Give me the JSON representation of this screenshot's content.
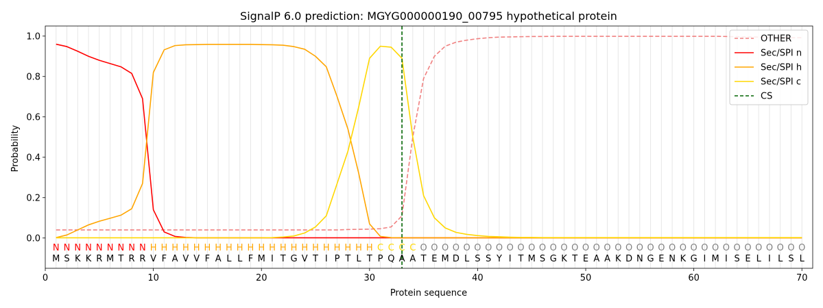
{
  "chart_data": {
    "type": "line",
    "title": "SignalP 6.0 prediction: MGYG000000190_00795 hypothetical protein",
    "xlabel": "Protein sequence",
    "ylabel": "Probability",
    "xlim": [
      0,
      71
    ],
    "ylim": [
      -0.15,
      1.05
    ],
    "xticks": [
      0,
      10,
      20,
      30,
      40,
      50,
      60,
      70
    ],
    "yticks": [
      0.0,
      0.2,
      0.4,
      0.6,
      0.8,
      1.0
    ],
    "xtick_labels": [
      "0",
      "10",
      "20",
      "30",
      "40",
      "50",
      "60",
      "70"
    ],
    "ytick_labels": [
      "0.0",
      "0.2",
      "0.4",
      "0.6",
      "0.8",
      "1.0"
    ],
    "legend_position": "top-right",
    "cleavage_site": {
      "name": "CS",
      "x": 33,
      "color": "#006400"
    },
    "sequence": "MSKKRMTRRVFAVVFALLFMITGVTIPTLTPQAATEMDLSSYITMSGKTEAAKDNGENKGIMISELILSL",
    "labels": "NNNNNNNNNHHHHHHHHHHHHHHHHHHHHHCCCCOOOOOOOOOOOOOOOOOOOOOOOOOOOOOOOOOOOO",
    "label_colors": {
      "N": "#ff0000",
      "H": "#ffa500",
      "C": "#ffd700",
      "O": "#808080"
    },
    "series": [
      {
        "name": "OTHER",
        "color": "#f08080",
        "dash": true,
        "values": [
          0.04,
          0.04,
          0.04,
          0.04,
          0.04,
          0.04,
          0.04,
          0.04,
          0.04,
          0.04,
          0.04,
          0.04,
          0.04,
          0.04,
          0.04,
          0.04,
          0.04,
          0.04,
          0.04,
          0.04,
          0.04,
          0.04,
          0.04,
          0.04,
          0.04,
          0.04,
          0.04,
          0.042,
          0.043,
          0.044,
          0.046,
          0.055,
          0.11,
          0.5,
          0.79,
          0.9,
          0.95,
          0.97,
          0.98,
          0.987,
          0.992,
          0.995,
          0.996,
          0.997,
          0.998,
          0.998,
          0.999,
          0.999,
          0.999,
          0.999,
          0.999,
          0.999,
          0.999,
          0.999,
          0.999,
          0.999,
          0.999,
          0.999,
          0.999,
          0.999,
          0.999,
          0.999,
          0.998,
          0.997,
          0.996,
          0.995,
          0.994,
          0.993,
          0.992,
          0.992
        ]
      },
      {
        "name": "Sec/SPI n",
        "color": "#ff0000",
        "dash": false,
        "values": [
          0.96,
          0.948,
          0.925,
          0.9,
          0.88,
          0.864,
          0.848,
          0.815,
          0.69,
          0.14,
          0.03,
          0.008,
          0.003,
          0.001,
          0.001,
          0.001,
          0.001,
          0.001,
          0.001,
          0.001,
          0.001,
          0.001,
          0.001,
          0.001,
          0.001,
          0.001,
          0.001,
          0.001,
          0.001,
          0.001,
          0.001,
          0.001,
          0.001,
          0.001,
          0.001,
          0.001,
          0.001,
          0.001,
          0.001,
          0.001,
          0.001,
          0.001,
          0.001,
          0.001,
          0.001,
          0.001,
          0.001,
          0.001,
          0.001,
          0.001,
          0.001,
          0.001,
          0.001,
          0.001,
          0.001,
          0.001,
          0.001,
          0.001,
          0.001,
          0.001,
          0.001,
          0.001,
          0.001,
          0.001,
          0.001,
          0.001,
          0.001,
          0.001,
          0.001,
          0.001
        ]
      },
      {
        "name": "Sec/SPI h",
        "color": "#ffa500",
        "dash": false,
        "values": [
          0.002,
          0.015,
          0.04,
          0.065,
          0.083,
          0.098,
          0.113,
          0.145,
          0.27,
          0.82,
          0.932,
          0.953,
          0.957,
          0.958,
          0.959,
          0.959,
          0.959,
          0.959,
          0.959,
          0.958,
          0.957,
          0.955,
          0.948,
          0.935,
          0.9,
          0.848,
          0.7,
          0.54,
          0.32,
          0.07,
          0.008,
          0.002,
          0.001,
          0.001,
          0.001,
          0.001,
          0.001,
          0.001,
          0.001,
          0.001,
          0.001,
          0.001,
          0.001,
          0.001,
          0.001,
          0.001,
          0.001,
          0.001,
          0.001,
          0.001,
          0.001,
          0.001,
          0.001,
          0.001,
          0.001,
          0.001,
          0.001,
          0.001,
          0.001,
          0.001,
          0.001,
          0.001,
          0.001,
          0.001,
          0.001,
          0.001,
          0.001,
          0.001,
          0.001,
          0.001
        ]
      },
      {
        "name": "Sec/SPI c",
        "color": "#ffd700",
        "dash": false,
        "values": [
          0.001,
          0.001,
          0.001,
          0.001,
          0.001,
          0.001,
          0.001,
          0.001,
          0.001,
          0.001,
          0.001,
          0.001,
          0.001,
          0.001,
          0.001,
          0.001,
          0.001,
          0.001,
          0.001,
          0.001,
          0.002,
          0.005,
          0.01,
          0.025,
          0.055,
          0.11,
          0.27,
          0.43,
          0.65,
          0.89,
          0.95,
          0.945,
          0.89,
          0.5,
          0.21,
          0.1,
          0.05,
          0.028,
          0.018,
          0.012,
          0.008,
          0.006,
          0.004,
          0.003,
          0.003,
          0.002,
          0.002,
          0.002,
          0.002,
          0.002,
          0.002,
          0.002,
          0.002,
          0.002,
          0.002,
          0.002,
          0.002,
          0.002,
          0.002,
          0.002,
          0.002,
          0.002,
          0.002,
          0.002,
          0.002,
          0.002,
          0.002,
          0.002,
          0.002,
          0.002
        ]
      }
    ]
  }
}
